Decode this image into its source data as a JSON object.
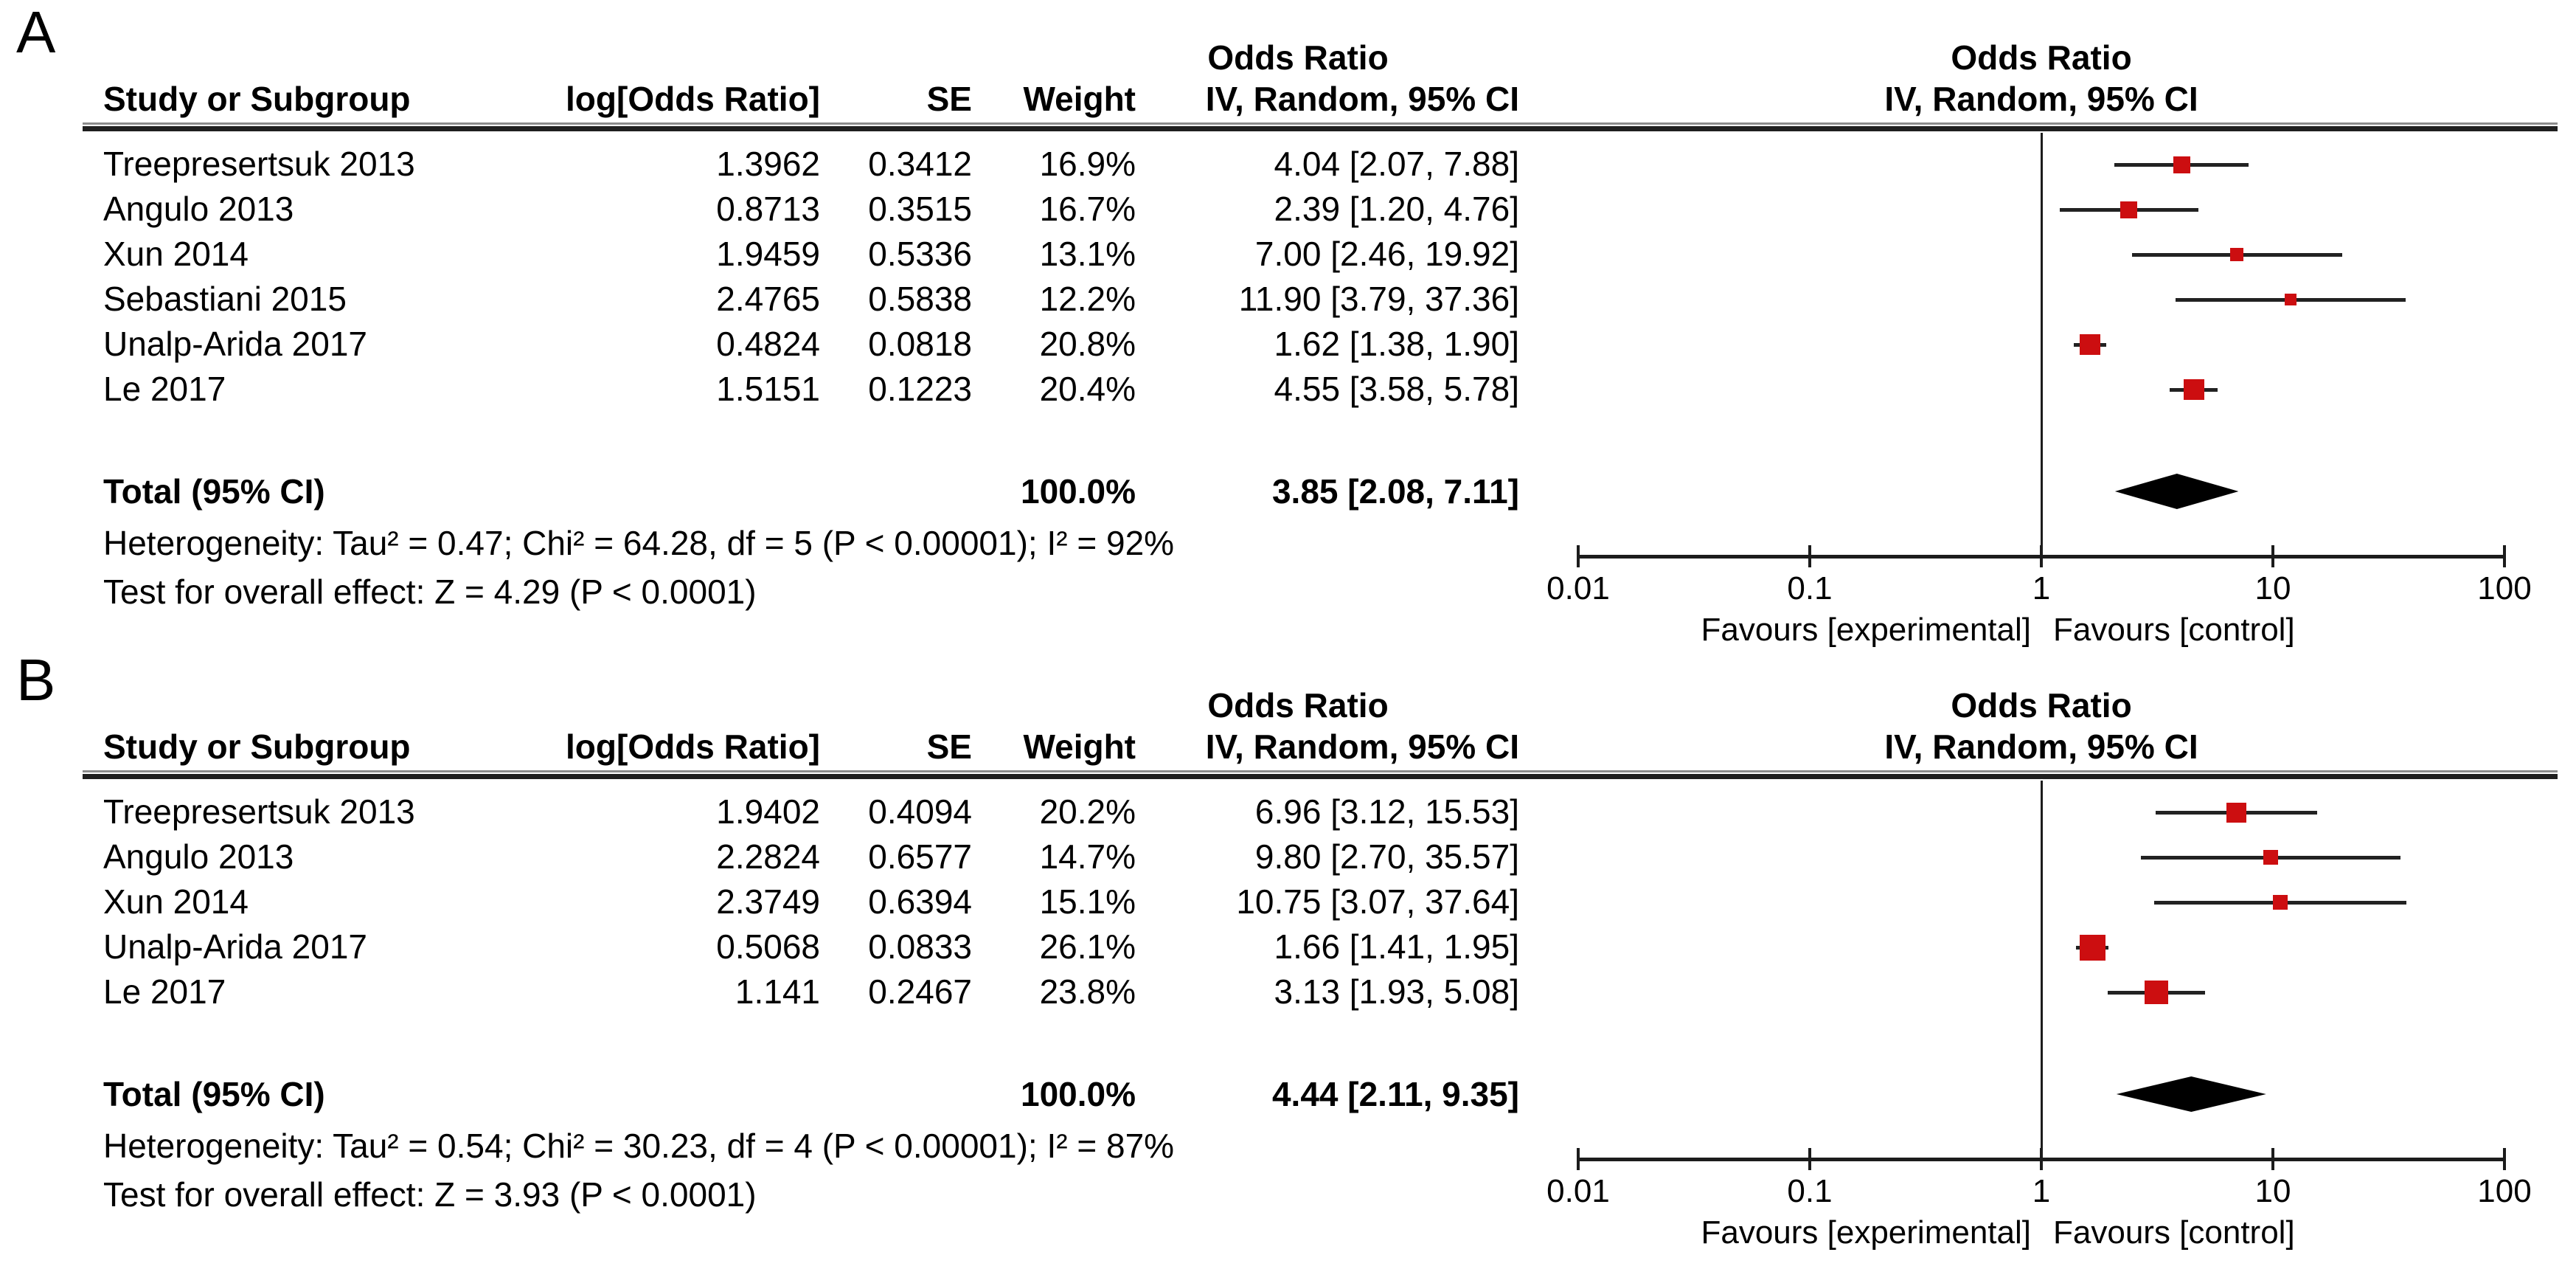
{
  "figure": {
    "marker_color": "#CC0E10",
    "line_color": "#1C1C1C",
    "diamond_color": "#000000"
  },
  "panels": [
    {
      "label": "A",
      "header": {
        "stats_or_title": "Odds Ratio",
        "plot_or_title": "Odds Ratio",
        "study": "Study or Subgroup",
        "logor": "log[Odds Ratio]",
        "se": "SE",
        "weight": "Weight",
        "ci": "IV, Random, 95% CI",
        "plot_ci": "IV, Random, 95% CI"
      },
      "studies": [
        {
          "name": "Treepresertsuk 2013",
          "logor": "1.3962",
          "se": "0.3412",
          "weight": "16.9%",
          "ci_text": "4.04 [2.07, 7.88]",
          "or": 4.04,
          "lo": 2.07,
          "hi": 7.88,
          "weight_pct": 16.9
        },
        {
          "name": "Angulo 2013",
          "logor": "0.8713",
          "se": "0.3515",
          "weight": "16.7%",
          "ci_text": "2.39 [1.20, 4.76]",
          "or": 2.39,
          "lo": 1.2,
          "hi": 4.76,
          "weight_pct": 16.7
        },
        {
          "name": "Xun 2014",
          "logor": "1.9459",
          "se": "0.5336",
          "weight": "13.1%",
          "ci_text": "7.00 [2.46, 19.92]",
          "or": 7.0,
          "lo": 2.46,
          "hi": 19.92,
          "weight_pct": 13.1
        },
        {
          "name": "Sebastiani 2015",
          "logor": "2.4765",
          "se": "0.5838",
          "weight": "12.2%",
          "ci_text": "11.90 [3.79, 37.36]",
          "or": 11.9,
          "lo": 3.79,
          "hi": 37.36,
          "weight_pct": 12.2
        },
        {
          "name": "Unalp-Arida 2017",
          "logor": "0.4824",
          "se": "0.0818",
          "weight": "20.8%",
          "ci_text": "1.62 [1.38, 1.90]",
          "or": 1.62,
          "lo": 1.38,
          "hi": 1.9,
          "weight_pct": 20.8
        },
        {
          "name": "Le 2017",
          "logor": "1.5151",
          "se": "0.1223",
          "weight": "20.4%",
          "ci_text": "4.55 [3.58, 5.78]",
          "or": 4.55,
          "lo": 3.58,
          "hi": 5.78,
          "weight_pct": 20.4
        }
      ],
      "total": {
        "label": "Total (95% CI)",
        "weight": "100.0%",
        "ci_text": "3.85 [2.08, 7.11]",
        "or": 3.85,
        "lo": 2.08,
        "hi": 7.11
      },
      "heterogeneity": "Heterogeneity: Tau² = 0.47; Chi² = 64.28, df = 5 (P < 0.00001); I² = 92%",
      "overall_effect": "Test for overall effect: Z = 4.29 (P < 0.0001)",
      "axis": {
        "tick_labels": [
          "0.01",
          "0.1",
          "1",
          "10",
          "100"
        ],
        "tick_values": [
          0.01,
          0.1,
          1,
          10,
          100
        ],
        "favours_left": "Favours [experimental]",
        "favours_right": "Favours [control]"
      }
    },
    {
      "label": "B",
      "header": {
        "stats_or_title": "Odds Ratio",
        "plot_or_title": "Odds Ratio",
        "study": "Study or Subgroup",
        "logor": "log[Odds Ratio]",
        "se": "SE",
        "weight": "Weight",
        "ci": "IV, Random, 95% CI",
        "plot_ci": "IV, Random, 95% CI"
      },
      "studies": [
        {
          "name": "Treepresertsuk 2013",
          "logor": "1.9402",
          "se": "0.4094",
          "weight": "20.2%",
          "ci_text": "6.96 [3.12, 15.53]",
          "or": 6.96,
          "lo": 3.12,
          "hi": 15.53,
          "weight_pct": 20.2
        },
        {
          "name": "Angulo 2013",
          "logor": "2.2824",
          "se": "0.6577",
          "weight": "14.7%",
          "ci_text": "9.80 [2.70, 35.57]",
          "or": 9.8,
          "lo": 2.7,
          "hi": 35.57,
          "weight_pct": 14.7
        },
        {
          "name": "Xun 2014",
          "logor": "2.3749",
          "se": "0.6394",
          "weight": "15.1%",
          "ci_text": "10.75 [3.07, 37.64]",
          "or": 10.75,
          "lo": 3.07,
          "hi": 37.64,
          "weight_pct": 15.1
        },
        {
          "name": "Unalp-Arida 2017",
          "logor": "0.5068",
          "se": "0.0833",
          "weight": "26.1%",
          "ci_text": "1.66 [1.41, 1.95]",
          "or": 1.66,
          "lo": 1.41,
          "hi": 1.95,
          "weight_pct": 26.1
        },
        {
          "name": "Le 2017",
          "logor": "1.141",
          "se": "0.2467",
          "weight": "23.8%",
          "ci_text": "3.13 [1.93, 5.08]",
          "or": 3.13,
          "lo": 1.93,
          "hi": 5.08,
          "weight_pct": 23.8
        }
      ],
      "total": {
        "label": "Total (95% CI)",
        "weight": "100.0%",
        "ci_text": "4.44 [2.11, 9.35]",
        "or": 4.44,
        "lo": 2.11,
        "hi": 9.35
      },
      "heterogeneity": "Heterogeneity: Tau² = 0.54; Chi² = 30.23, df = 4 (P < 0.00001); I² = 87%",
      "overall_effect": "Test for overall effect: Z = 3.93 (P < 0.0001)",
      "axis": {
        "tick_labels": [
          "0.01",
          "0.1",
          "1",
          "10",
          "100"
        ],
        "tick_values": [
          0.01,
          0.1,
          1,
          10,
          100
        ],
        "favours_left": "Favours [experimental]",
        "favours_right": "Favours [control]"
      }
    }
  ],
  "chart_data": [
    {
      "type": "scatter",
      "subtype": "forest_plot_random_effects_meta_analysis",
      "panel": "A",
      "title": "Odds Ratio",
      "effect_model": "IV, Random, 95% CI",
      "x_scale": "log10",
      "x_range": [
        0.01,
        100
      ],
      "x_ticks": [
        0.01,
        0.1,
        1,
        10,
        100
      ],
      "null_line": 1,
      "xlabel_left": "Favours [experimental]",
      "xlabel_right": "Favours [control]",
      "studies": [
        {
          "name": "Treepresertsuk 2013",
          "log_or": 1.3962,
          "se": 0.3412,
          "weight_pct": 16.9,
          "or": 4.04,
          "ci_low": 2.07,
          "ci_high": 7.88
        },
        {
          "name": "Angulo 2013",
          "log_or": 0.8713,
          "se": 0.3515,
          "weight_pct": 16.7,
          "or": 2.39,
          "ci_low": 1.2,
          "ci_high": 4.76
        },
        {
          "name": "Xun 2014",
          "log_or": 1.9459,
          "se": 0.5336,
          "weight_pct": 13.1,
          "or": 7.0,
          "ci_low": 2.46,
          "ci_high": 19.92
        },
        {
          "name": "Sebastiani 2015",
          "log_or": 2.4765,
          "se": 0.5838,
          "weight_pct": 12.2,
          "or": 11.9,
          "ci_low": 3.79,
          "ci_high": 37.36
        },
        {
          "name": "Unalp-Arida 2017",
          "log_or": 0.4824,
          "se": 0.0818,
          "weight_pct": 20.8,
          "or": 1.62,
          "ci_low": 1.38,
          "ci_high": 1.9
        },
        {
          "name": "Le 2017",
          "log_or": 1.5151,
          "se": 0.1223,
          "weight_pct": 20.4,
          "or": 4.55,
          "ci_low": 3.58,
          "ci_high": 5.78
        }
      ],
      "total": {
        "weight_pct": 100.0,
        "or": 3.85,
        "ci_low": 2.08,
        "ci_high": 7.11
      },
      "heterogeneity": {
        "tau2": 0.47,
        "chi2": 64.28,
        "df": 5,
        "p": "< 0.00001",
        "i2_pct": 92
      },
      "overall_effect": {
        "z": 4.29,
        "p": "< 0.0001"
      }
    },
    {
      "type": "scatter",
      "subtype": "forest_plot_random_effects_meta_analysis",
      "panel": "B",
      "title": "Odds Ratio",
      "effect_model": "IV, Random, 95% CI",
      "x_scale": "log10",
      "x_range": [
        0.01,
        100
      ],
      "x_ticks": [
        0.01,
        0.1,
        1,
        10,
        100
      ],
      "null_line": 1,
      "xlabel_left": "Favours [experimental]",
      "xlabel_right": "Favours [control]",
      "studies": [
        {
          "name": "Treepresertsuk 2013",
          "log_or": 1.9402,
          "se": 0.4094,
          "weight_pct": 20.2,
          "or": 6.96,
          "ci_low": 3.12,
          "ci_high": 15.53
        },
        {
          "name": "Angulo 2013",
          "log_or": 2.2824,
          "se": 0.6577,
          "weight_pct": 14.7,
          "or": 9.8,
          "ci_low": 2.7,
          "ci_high": 35.57
        },
        {
          "name": "Xun 2014",
          "log_or": 2.3749,
          "se": 0.6394,
          "weight_pct": 15.1,
          "or": 10.75,
          "ci_low": 3.07,
          "ci_high": 37.64
        },
        {
          "name": "Unalp-Arida 2017",
          "log_or": 0.5068,
          "se": 0.0833,
          "weight_pct": 26.1,
          "or": 1.66,
          "ci_low": 1.41,
          "ci_high": 1.95
        },
        {
          "name": "Le 2017",
          "log_or": 1.141,
          "se": 0.2467,
          "weight_pct": 23.8,
          "or": 3.13,
          "ci_low": 1.93,
          "ci_high": 5.08
        }
      ],
      "total": {
        "weight_pct": 100.0,
        "or": 4.44,
        "ci_low": 2.11,
        "ci_high": 9.35
      },
      "heterogeneity": {
        "tau2": 0.54,
        "chi2": 30.23,
        "df": 4,
        "p": "< 0.00001",
        "i2_pct": 87
      },
      "overall_effect": {
        "z": 3.93,
        "p": "< 0.0001"
      }
    }
  ]
}
